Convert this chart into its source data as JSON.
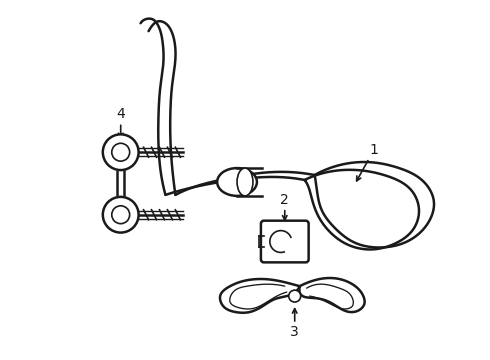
{
  "background_color": "#ffffff",
  "line_color": "#1a1a1a",
  "figure_width": 4.9,
  "figure_height": 3.6,
  "dpi": 100,
  "label_1": "1",
  "label_2": "2",
  "label_3": "3",
  "label_4": "4",
  "font_size": 10
}
